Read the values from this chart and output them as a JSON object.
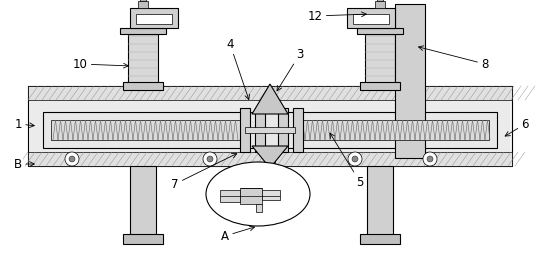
{
  "bg_color": "#ffffff",
  "lc": "#000000",
  "fig_w": 5.39,
  "fig_h": 2.54,
  "dpi": 100
}
